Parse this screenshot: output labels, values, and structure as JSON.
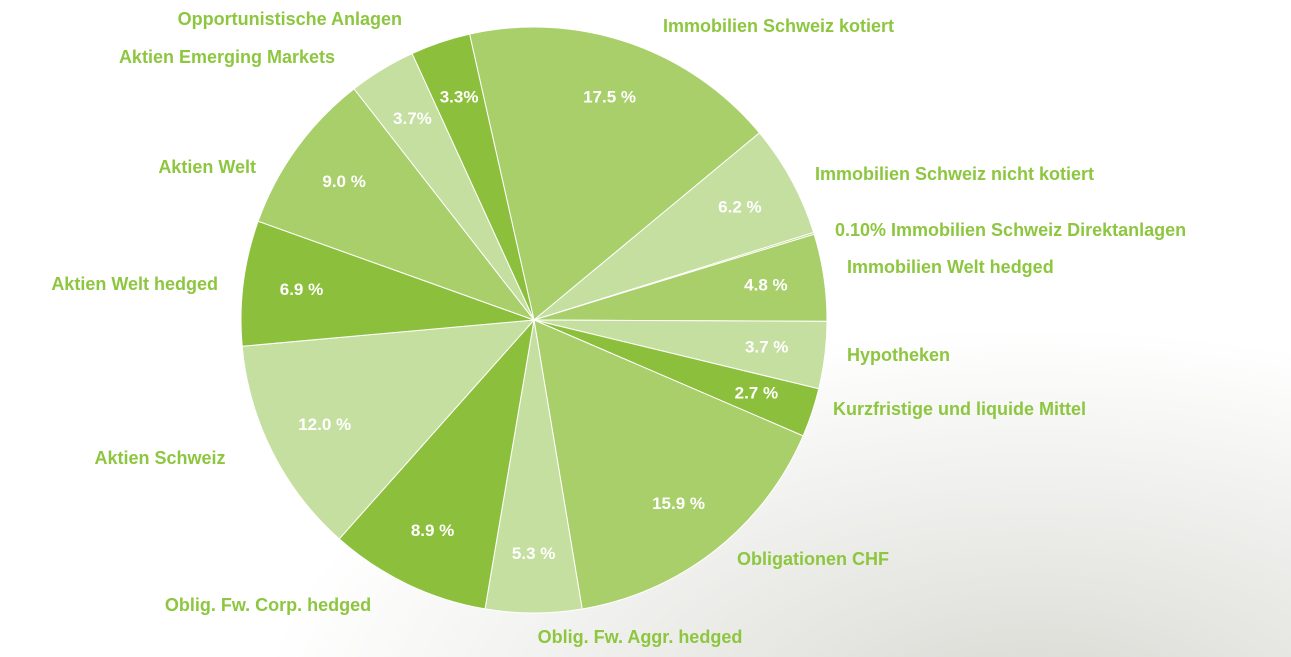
{
  "chart_data": {
    "type": "pie",
    "categories": [
      "Immobilien Schweiz kotiert",
      "Immobilien Schweiz nicht kotiert",
      "0.10% Immobilien Schweiz Direktanlagen",
      "Immobilien Welt hedged",
      "Hypotheken",
      "Kurzfristige und liquide Mittel",
      "Obligationen CHF",
      "Oblig. Fw. Aggr. hedged",
      "Oblig. Fw. Corp. hedged",
      "Aktien Schweiz",
      "Aktien Welt hedged",
      "Aktien Welt",
      "Aktien Emerging Markets",
      "Opportunistische Anlagen"
    ],
    "values": [
      17.5,
      6.2,
      0.1,
      4.8,
      3.7,
      2.7,
      15.9,
      5.3,
      8.9,
      12.0,
      6.9,
      9.0,
      3.7,
      3.3
    ],
    "value_labels": [
      "17.5 %",
      "6.2 %",
      null,
      "4.8 %",
      "3.7 %",
      "2.7 %",
      "15.9 %",
      "5.3 %",
      "8.9 %",
      "12.0 %",
      "6.9 %",
      "9.0 %",
      "3.7%",
      "3.3%"
    ],
    "colors": [
      "#a8cf6a",
      "#c5dfa0",
      "#a8cf6a",
      "#a8cf6a",
      "#c5dfa0",
      "#8cc03c",
      "#a8cf6a",
      "#c5dfa0",
      "#8cc03c",
      "#c5dfa0",
      "#8cc03c",
      "#a8cf6a",
      "#c5dfa0",
      "#8cc03c"
    ]
  }
}
